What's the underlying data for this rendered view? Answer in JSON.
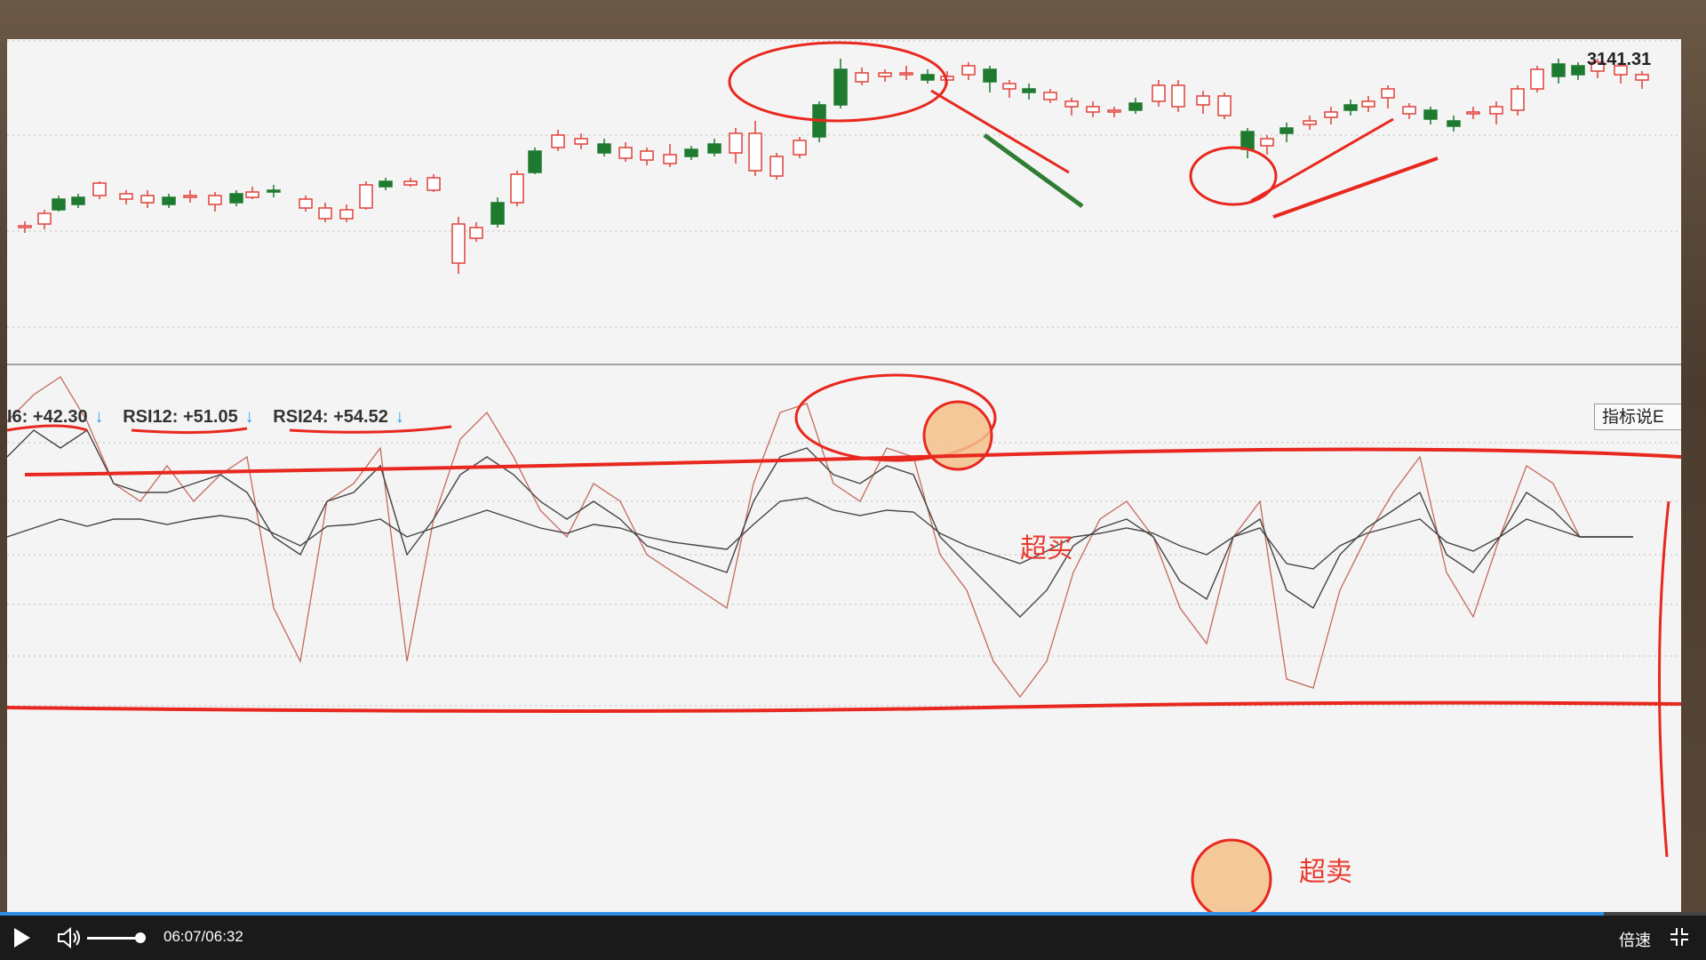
{
  "chart": {
    "price_label": "3141.31",
    "indicators": [
      {
        "label": "I6: +42.30",
        "arrow": "↓"
      },
      {
        "label": "RSI12: +51.05",
        "arrow": "↓"
      },
      {
        "label": "RSI24: +54.52",
        "arrow": "↓"
      }
    ],
    "explain_button": "指标说E",
    "annotations": {
      "overbought": "超买",
      "oversold": "超卖"
    },
    "colors": {
      "up": "#e0403a",
      "down": "#1e7a2e",
      "annotation": "#e8281e",
      "rsi_fast": "#c46a5e",
      "rsi_slow": "#444444"
    }
  },
  "player": {
    "current_time": "06:07",
    "separator": "/",
    "duration": "06:32",
    "speed_label": "倍速",
    "progress": 0.94,
    "volume": 0.9
  }
}
